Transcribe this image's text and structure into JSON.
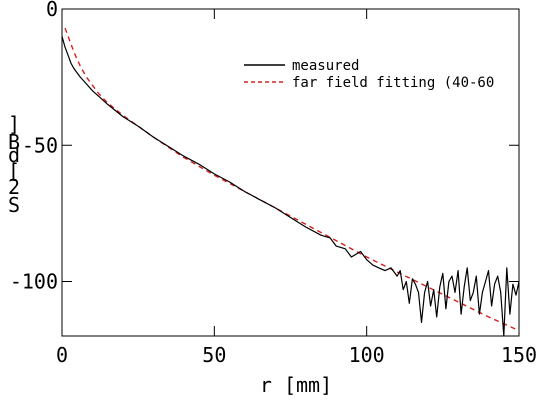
{
  "chart_data": {
    "type": "line",
    "title": "",
    "xlabel": "r [mm]",
    "ylabel": "[dB]",
    "ylabel_glyphs": [
      "]",
      "B",
      "d",
      "[",
      "2",
      "S"
    ],
    "xlim": [
      0,
      150
    ],
    "ylim": [
      -120,
      0
    ],
    "x_ticks": [
      0,
      50,
      100,
      150
    ],
    "y_ticks": [
      0,
      -50,
      -100
    ],
    "x_tick_labels": [
      "0",
      "50",
      "100",
      "150"
    ],
    "y_tick_labels": [
      "0",
      "-50",
      "-100"
    ],
    "grid": false,
    "legend_position": "top-right",
    "colors": {
      "measured": "#000000",
      "fit": "#d62020"
    },
    "series": [
      {
        "name": "measured",
        "style": "solid",
        "x": [
          0,
          1,
          2,
          3,
          4,
          5,
          6,
          8,
          10,
          12,
          15,
          20,
          25,
          30,
          35,
          40,
          45,
          50,
          55,
          60,
          65,
          70,
          75,
          80,
          85,
          88,
          90,
          93,
          95,
          98,
          100,
          102,
          104,
          106,
          108,
          110,
          111,
          112,
          113,
          114,
          115,
          116,
          117,
          118,
          119,
          120,
          121,
          122,
          123,
          124,
          125,
          126,
          127,
          128,
          129,
          130,
          131,
          132,
          133,
          134,
          135,
          136,
          137,
          138,
          139,
          140,
          141,
          142,
          143,
          144,
          145,
          146,
          147,
          148,
          149,
          150
        ],
        "y": [
          -10,
          -14,
          -17,
          -20,
          -22,
          -23.5,
          -25,
          -27.5,
          -30,
          -32,
          -35,
          -39.5,
          -43,
          -47,
          -50.5,
          -54,
          -57,
          -60.5,
          -63.5,
          -67,
          -70,
          -73,
          -76.5,
          -80,
          -83,
          -84,
          -87,
          -88,
          -91,
          -89,
          -92,
          -94,
          -95,
          -96,
          -95,
          -98,
          -96,
          -103,
          -100,
          -108,
          -99,
          -101,
          -104,
          -115,
          -104,
          -100,
          -109,
          -103,
          -113,
          -102,
          -97,
          -110,
          -100,
          -98,
          -104,
          -96,
          -112,
          -102,
          -95,
          -107,
          -104,
          -98,
          -112,
          -104,
          -100,
          -96,
          -109,
          -101,
          -98,
          -104,
          -120,
          -95,
          -112,
          -101,
          -105,
          -100
        ]
      },
      {
        "name": "far field fitting (40-60",
        "style": "dashed",
        "x": [
          1,
          2,
          3,
          4,
          5,
          6,
          8,
          10,
          12,
          15,
          20,
          25,
          30,
          40,
          50,
          60,
          70,
          80,
          90,
          100,
          110,
          120,
          130,
          140,
          150
        ],
        "y": [
          -7,
          -10,
          -13,
          -16,
          -18.5,
          -21,
          -25,
          -28,
          -31,
          -34.5,
          -39,
          -43,
          -47,
          -54.5,
          -61,
          -67,
          -73,
          -79,
          -85,
          -91,
          -96.5,
          -102,
          -107.5,
          -113,
          -118
        ]
      }
    ]
  }
}
